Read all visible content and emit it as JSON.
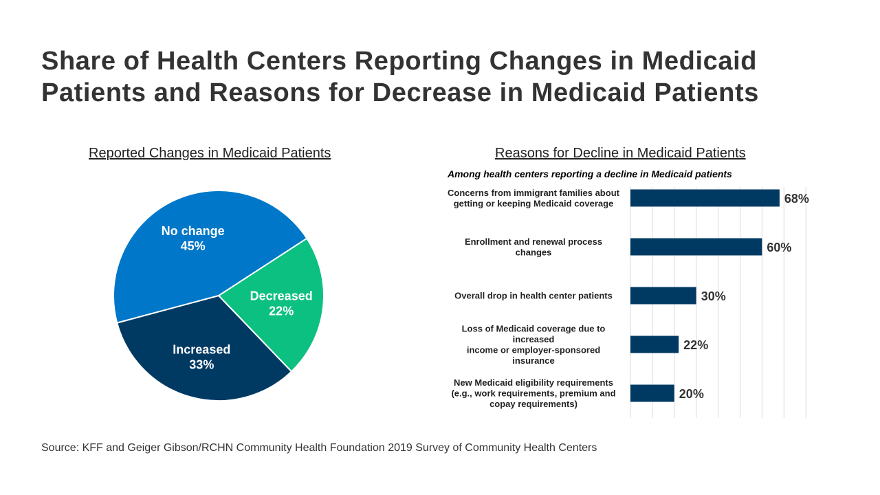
{
  "title": "Share of Health Centers Reporting Changes in Medicaid Patients and Reasons for Decrease in Medicaid Patients",
  "source": "Source: KFF and Geiger Gibson/RCHN Community Health Foundation 2019 Survey of Community Health Centers",
  "chart_data": [
    {
      "type": "pie",
      "title": "Reported Changes in Medicaid Patients",
      "slices": [
        {
          "label": "Decreased",
          "value": 22,
          "value_label": "22%",
          "color": "#0cc081"
        },
        {
          "label": "Increased",
          "value": 33,
          "value_label": "33%",
          "color": "#003a63"
        },
        {
          "label": "No change",
          "value": 45,
          "value_label": "45%",
          "color": "#0077c8"
        }
      ]
    },
    {
      "type": "bar",
      "orientation": "horizontal",
      "title": "Reasons for Decline in Medicaid Patients",
      "subtitle": "Among health centers reporting a decline in Medicaid patients",
      "categories": [
        [
          "Concerns from immigrant families about",
          "getting or keeping Medicaid coverage"
        ],
        [
          "Enrollment and renewal process",
          "changes"
        ],
        [
          "Overall drop in health center patients"
        ],
        [
          "Loss of Medicaid coverage due to",
          "increased",
          "income or employer-sponsored",
          "insurance"
        ],
        [
          "New Medicaid eligibility requirements",
          "(e.g., work requirements, premium and",
          "copay requirements)"
        ]
      ],
      "values": [
        68,
        60,
        30,
        22,
        20
      ],
      "value_labels": [
        "68%",
        "60%",
        "30%",
        "22%",
        "20%"
      ],
      "xlim": [
        0,
        80
      ],
      "grid": true,
      "color": "#003a63"
    }
  ]
}
